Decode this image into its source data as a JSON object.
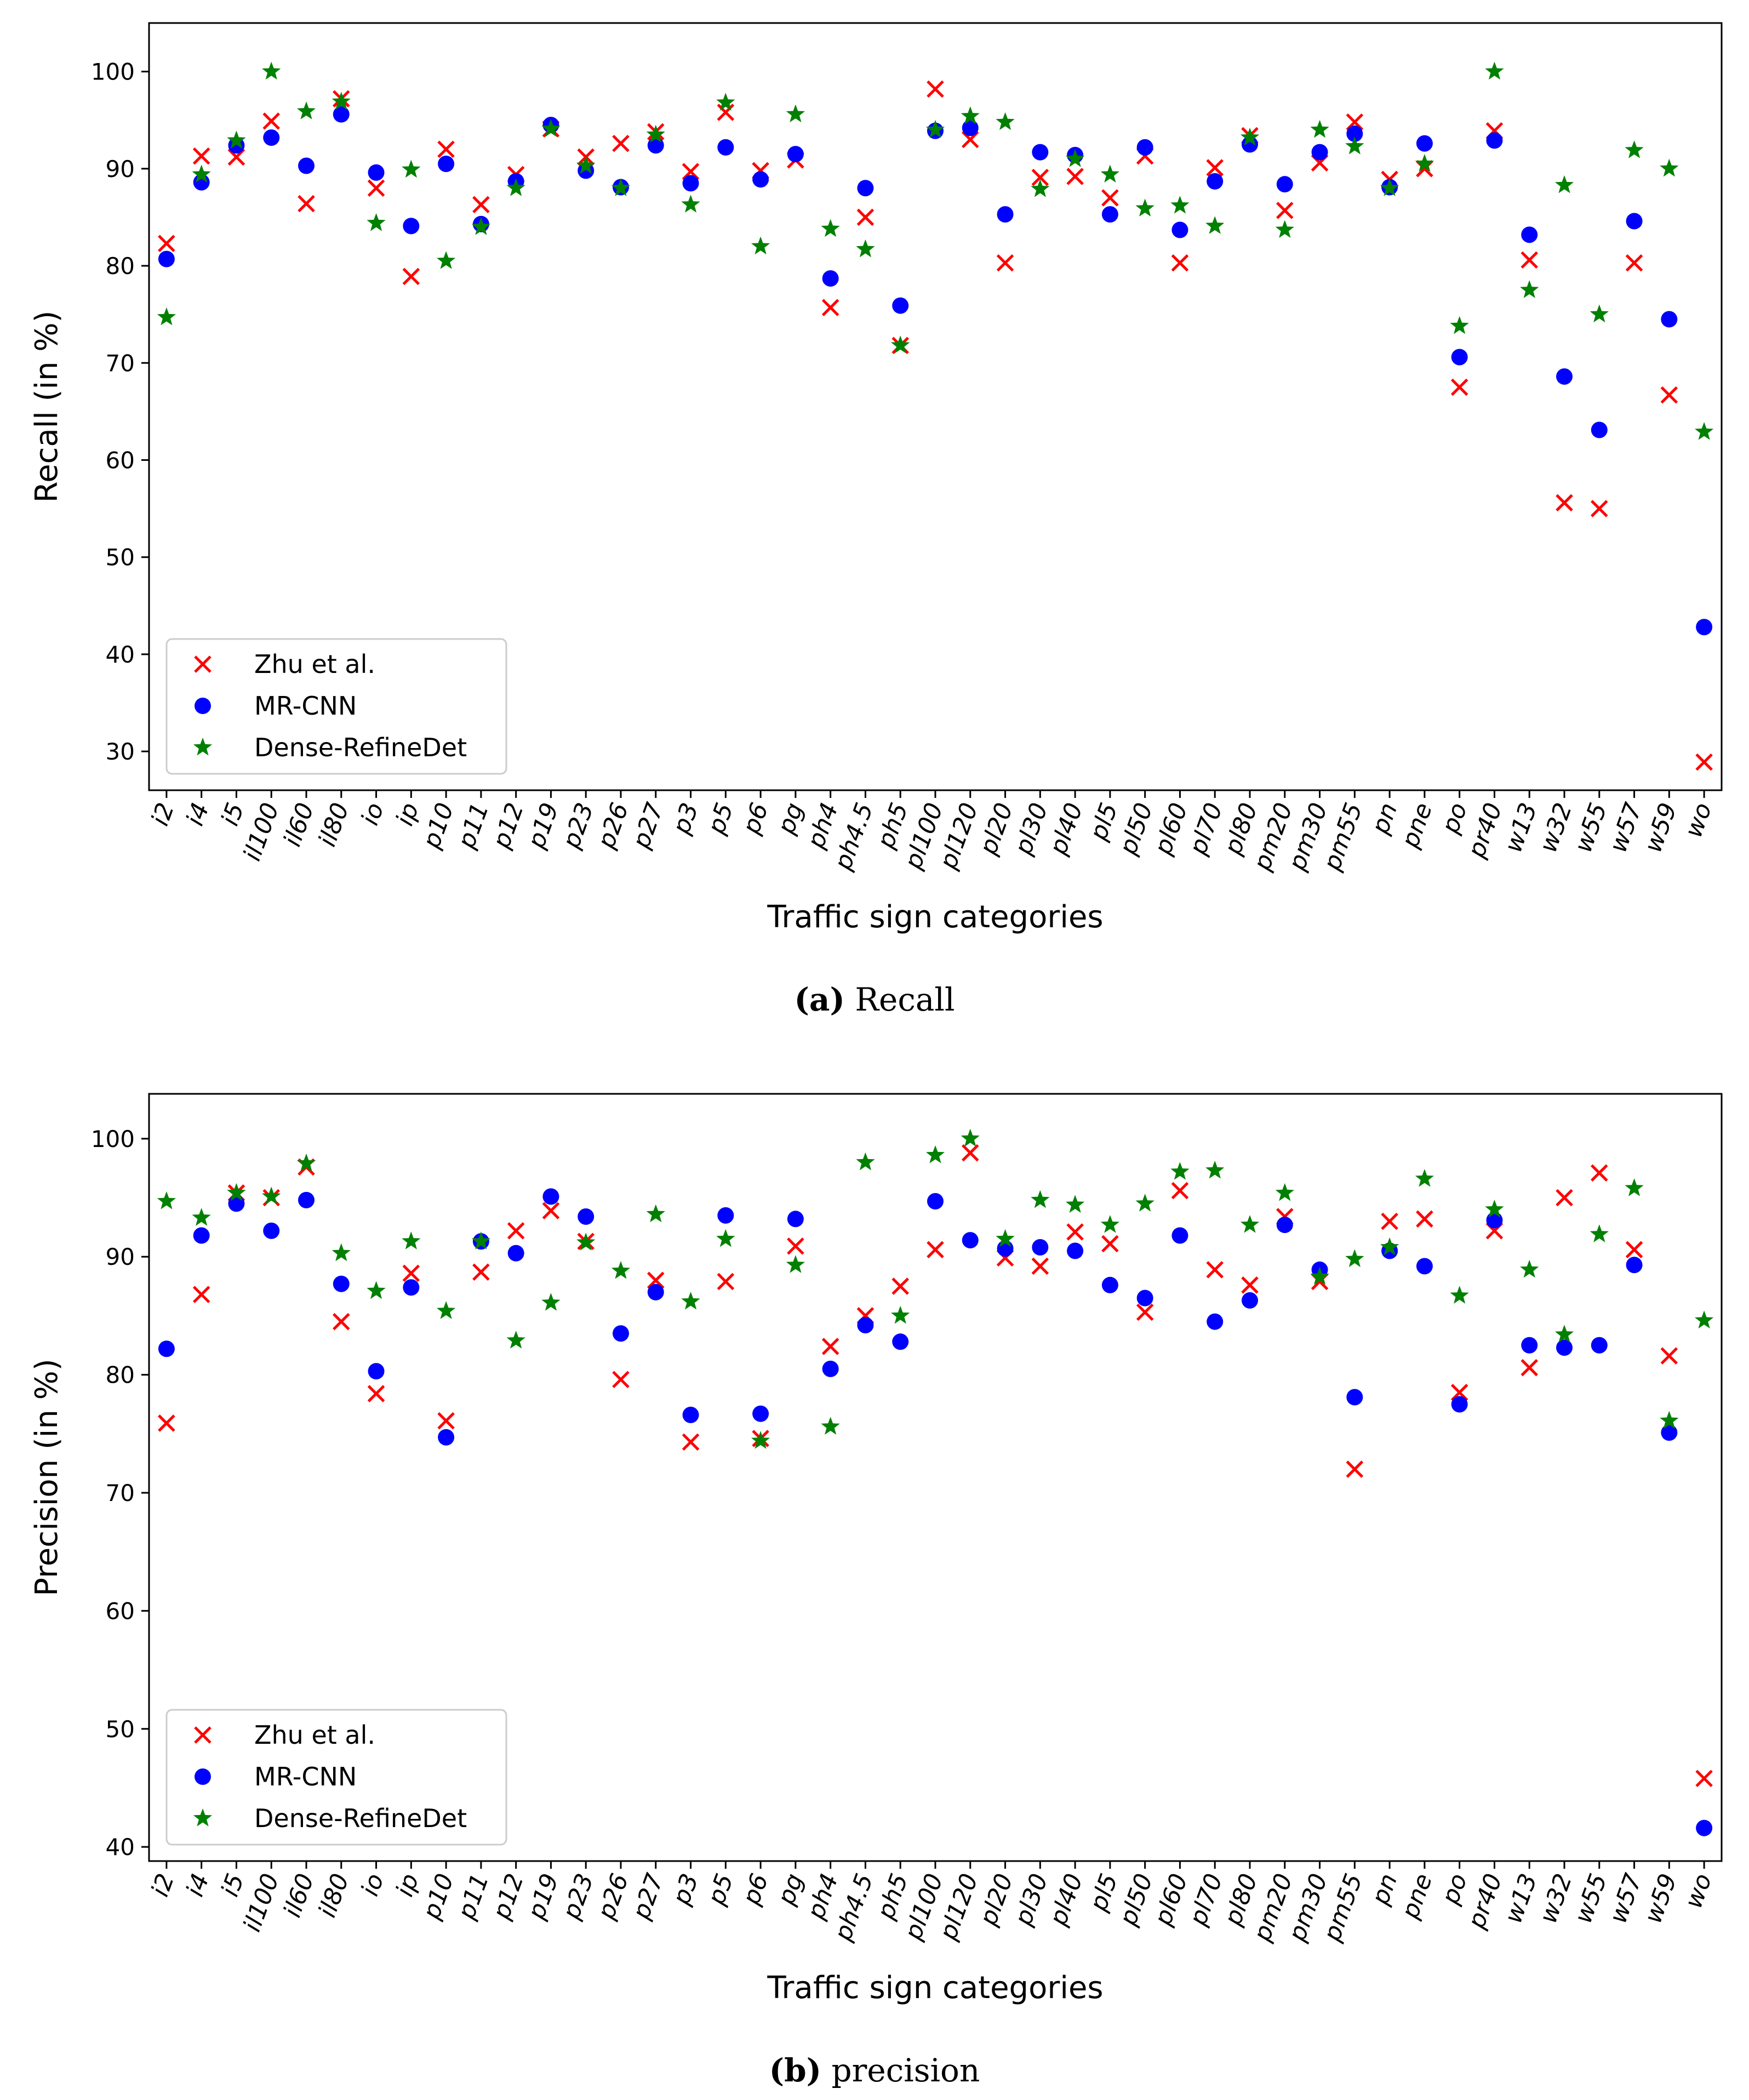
{
  "categories": [
    "i2",
    "i4",
    "i5",
    "il100",
    "il60",
    "il80",
    "io",
    "ip",
    "p10",
    "p11",
    "p12",
    "p19",
    "p23",
    "p26",
    "p27",
    "p3",
    "p5",
    "p6",
    "pg",
    "ph4",
    "ph4.5",
    "ph5",
    "pl100",
    "pl120",
    "pl20",
    "pl30",
    "pl40",
    "pl5",
    "pl50",
    "pl60",
    "pl70",
    "pl80",
    "pm20",
    "pm30",
    "pm55",
    "pn",
    "pne",
    "po",
    "pr40",
    "w13",
    "w32",
    "w55",
    "w57",
    "w59",
    "wo"
  ],
  "colors": {
    "zhu": "#ff0000",
    "mrcnn": "#0000ff",
    "dense": "#008000"
  },
  "chart_data": [
    {
      "type": "scatter",
      "id": "recall",
      "ylabel": "Recall (in %)",
      "xlabel": "Traffic sign categories",
      "ylim": [
        26,
        105
      ],
      "yticks": [
        30,
        40,
        50,
        60,
        70,
        80,
        90,
        100
      ],
      "legend_position": "lower-left",
      "series": [
        {
          "name": "Zhu et al.",
          "marker": "x",
          "values": [
            82.3,
            91.3,
            91.2,
            94.9,
            86.4,
            97.2,
            88.0,
            78.9,
            92.0,
            86.3,
            89.4,
            94.1,
            91.2,
            92.6,
            93.8,
            89.7,
            95.8,
            89.8,
            90.9,
            75.7,
            85.0,
            71.8,
            98.2,
            93.0,
            80.3,
            89.1,
            89.2,
            87.0,
            91.3,
            80.3,
            90.1,
            93.4,
            85.7,
            90.6,
            94.8,
            88.9,
            90.0,
            67.5,
            93.9,
            80.6,
            55.6,
            55.0,
            80.3,
            66.7,
            28.9
          ]
        },
        {
          "name": "MR-CNN",
          "marker": "o",
          "values": [
            80.7,
            88.6,
            92.4,
            93.2,
            90.3,
            95.6,
            89.6,
            84.1,
            90.5,
            84.3,
            88.7,
            94.5,
            89.8,
            88.1,
            92.4,
            88.5,
            92.2,
            88.9,
            91.5,
            78.7,
            88.0,
            75.9,
            93.9,
            94.2,
            85.3,
            91.7,
            91.4,
            85.3,
            92.2,
            83.7,
            88.7,
            92.5,
            88.4,
            91.7,
            93.6,
            88.1,
            92.6,
            70.6,
            92.9,
            83.2,
            68.6,
            63.1,
            84.6,
            74.5,
            42.8
          ]
        },
        {
          "name": "Dense-RefineDet",
          "marker": "*",
          "values": [
            74.7,
            89.4,
            92.9,
            100.0,
            95.9,
            96.9,
            84.4,
            89.9,
            80.5,
            84.0,
            88.0,
            94.1,
            90.3,
            88.0,
            93.5,
            86.3,
            96.8,
            82.0,
            95.6,
            83.8,
            81.7,
            71.8,
            94.0,
            95.4,
            94.8,
            87.9,
            91.0,
            89.4,
            85.9,
            86.2,
            84.1,
            93.2,
            83.7,
            94.0,
            92.3,
            88.0,
            90.5,
            73.8,
            100.0,
            77.5,
            88.3,
            75.0,
            91.9,
            90.0,
            62.9
          ]
        }
      ]
    },
    {
      "type": "scatter",
      "id": "precision",
      "ylabel": "Precision (in %)",
      "xlabel": "Traffic sign categories",
      "ylim": [
        38.8,
        103.8
      ],
      "yticks": [
        40,
        50,
        60,
        70,
        80,
        90,
        100
      ],
      "legend_position": "lower-left",
      "series": [
        {
          "name": "Zhu et al.",
          "marker": "x",
          "values": [
            75.9,
            86.8,
            95.4,
            95.0,
            97.6,
            84.5,
            78.4,
            88.6,
            76.1,
            88.7,
            92.2,
            93.9,
            91.3,
            79.6,
            88.0,
            74.3,
            87.9,
            74.6,
            90.9,
            82.4,
            85.0,
            87.5,
            90.6,
            98.8,
            89.9,
            89.2,
            92.1,
            91.1,
            85.3,
            95.6,
            88.9,
            87.6,
            93.4,
            87.9,
            72.0,
            93.0,
            93.2,
            78.5,
            92.2,
            80.6,
            95.0,
            97.1,
            90.6,
            81.6,
            45.8
          ]
        },
        {
          "name": "MR-CNN",
          "marker": "o",
          "values": [
            82.2,
            91.8,
            94.5,
            92.2,
            94.8,
            87.7,
            80.3,
            87.4,
            74.7,
            91.3,
            90.3,
            95.1,
            93.4,
            83.5,
            87.0,
            76.6,
            93.5,
            76.7,
            93.2,
            80.5,
            84.2,
            82.8,
            94.7,
            91.4,
            90.7,
            90.8,
            90.5,
            87.6,
            86.5,
            91.8,
            84.5,
            86.3,
            92.7,
            88.9,
            78.1,
            90.5,
            89.2,
            77.5,
            93.1,
            82.5,
            82.3,
            82.5,
            89.3,
            75.1,
            41.6
          ]
        },
        {
          "name": "Dense-RefineDet",
          "marker": "*",
          "values": [
            94.7,
            93.3,
            95.4,
            95.1,
            97.9,
            90.3,
            87.1,
            91.3,
            85.4,
            91.3,
            82.9,
            86.1,
            91.2,
            88.8,
            93.6,
            86.2,
            91.5,
            74.4,
            89.3,
            75.6,
            98.0,
            85.0,
            98.6,
            100.0,
            91.5,
            94.8,
            94.4,
            92.7,
            94.5,
            97.2,
            97.3,
            92.7,
            95.4,
            88.3,
            89.8,
            90.8,
            96.6,
            86.7,
            94.0,
            88.9,
            83.4,
            91.9,
            95.8,
            76.1,
            84.6
          ]
        }
      ]
    }
  ],
  "captions": [
    {
      "label": "(a)",
      "text": "Recall"
    },
    {
      "label": "(b)",
      "text": "precision"
    }
  ]
}
